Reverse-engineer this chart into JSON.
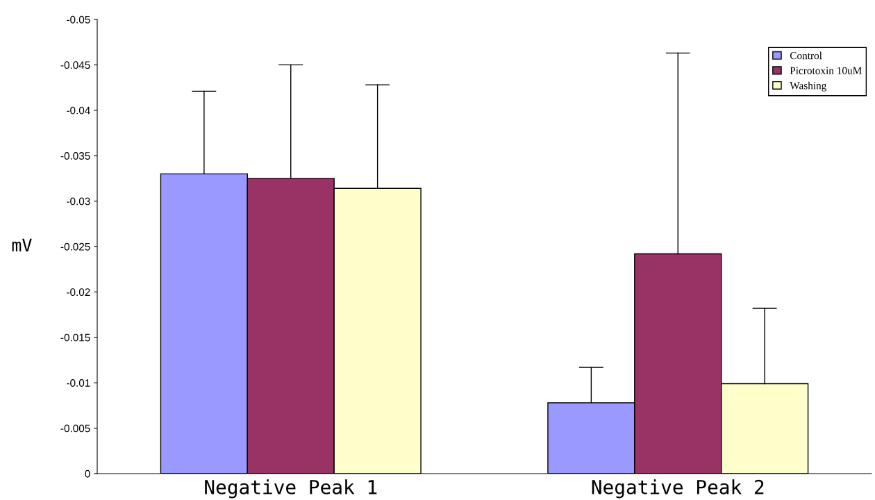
{
  "chart_data": {
    "type": "bar",
    "ylabel": "mV",
    "categories": [
      "Negative Peak 1",
      "Negative Peak 2"
    ],
    "series": [
      {
        "name": "Control",
        "color": "#9999ff",
        "values": [
          -0.033,
          -0.0078
        ],
        "errors": [
          [
            -0.0421,
            -0.033
          ],
          [
            -0.0117,
            -0.0078
          ]
        ]
      },
      {
        "name": "Picrotoxin 10uM",
        "color": "#993366",
        "values": [
          -0.0325,
          -0.0242
        ],
        "errors": [
          [
            -0.045,
            -0.0325
          ],
          [
            -0.0463,
            -0.0242
          ]
        ]
      },
      {
        "name": "Washing",
        "color": "#ffffcc",
        "values": [
          -0.0314,
          -0.0099
        ],
        "errors": [
          [
            -0.0428,
            -0.0314
          ],
          [
            -0.0182,
            -0.0099
          ]
        ]
      }
    ],
    "ylim": [
      0,
      -0.05
    ],
    "yticks": [
      0,
      -0.005,
      -0.01,
      -0.015,
      -0.02,
      -0.025,
      -0.03,
      -0.035,
      -0.04,
      -0.045,
      -0.05
    ],
    "grid": false,
    "legend": "top right"
  }
}
